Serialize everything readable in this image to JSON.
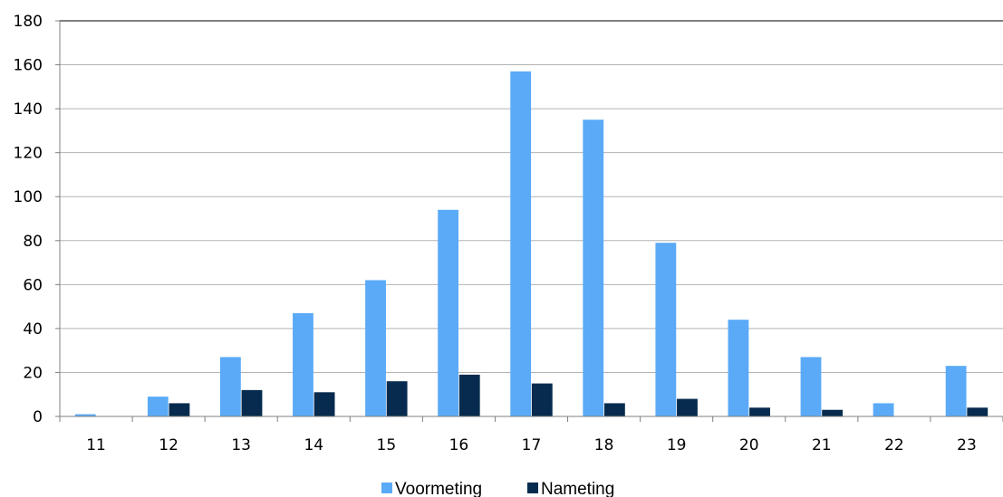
{
  "chart_data": {
    "type": "bar",
    "categories": [
      "11",
      "12",
      "13",
      "14",
      "15",
      "16",
      "17",
      "18",
      "19",
      "20",
      "21",
      "22",
      "23"
    ],
    "series": [
      {
        "name": "Voormeting",
        "color": "#5aaaf7",
        "values": [
          1,
          9,
          27,
          47,
          62,
          94,
          157,
          135,
          79,
          44,
          27,
          6,
          23
        ]
      },
      {
        "name": "Nameting",
        "color": "#062b4e",
        "values": [
          0,
          6,
          12,
          11,
          16,
          19,
          15,
          6,
          8,
          4,
          3,
          0,
          4
        ]
      }
    ],
    "yticks": [
      "0",
      "20",
      "40",
      "60",
      "80",
      "100",
      "120",
      "140",
      "160",
      "180"
    ],
    "ylim": [
      0,
      180
    ],
    "grid": true,
    "legend_position": "bottom"
  }
}
